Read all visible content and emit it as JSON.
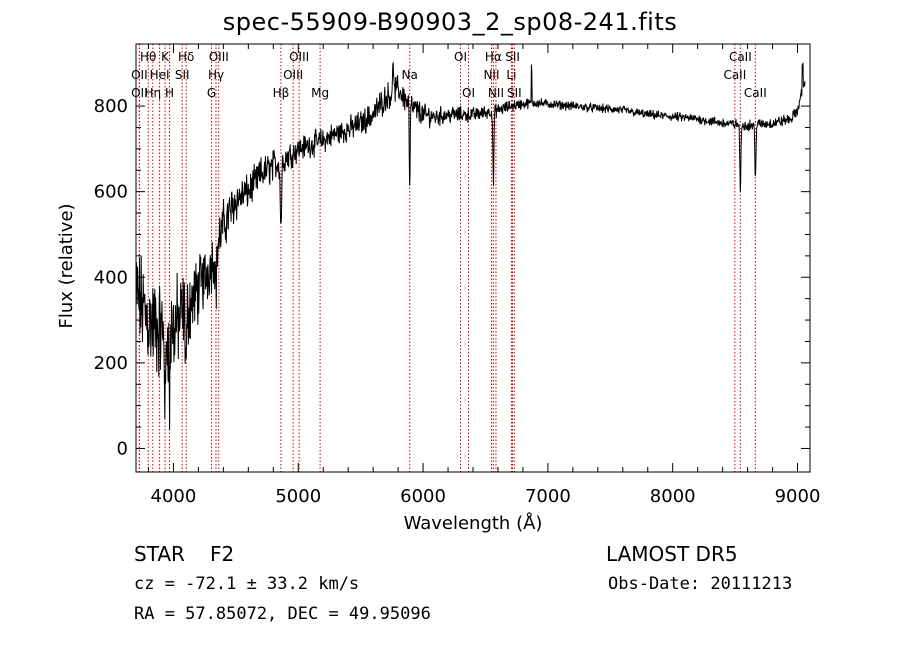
{
  "title": "spec-55909-B90903_2_sp08-241.fits",
  "info": {
    "object_type": "STAR",
    "subclass": "F2",
    "survey": "LAMOST DR5",
    "cz": "cz = -72.1 ± 33.2 km/s",
    "obs_date": "Obs-Date: 20111213",
    "coords": "RA =  57.85072, DEC =  49.95096"
  },
  "chart_data": {
    "type": "line",
    "title": "spec-55909-B90903_2_sp08-241.fits",
    "xlabel": "Wavelength (Å)",
    "ylabel": "Flux (relative)",
    "xlim": [
      3700,
      9100
    ],
    "ylim": [
      -55,
      945
    ],
    "xticks": [
      4000,
      5000,
      6000,
      7000,
      8000,
      9000
    ],
    "yticks": [
      0,
      200,
      400,
      600,
      800
    ],
    "grid": false,
    "line_color": "#000000",
    "marker_line_color": "#cc0000",
    "continuum": [
      [
        3700,
        360
      ],
      [
        3800,
        300
      ],
      [
        3900,
        270
      ],
      [
        4000,
        280
      ],
      [
        4100,
        320
      ],
      [
        4200,
        370
      ],
      [
        4300,
        430
      ],
      [
        4400,
        520
      ],
      [
        4500,
        580
      ],
      [
        4600,
        600
      ],
      [
        4700,
        640
      ],
      [
        4800,
        660
      ],
      [
        4900,
        680
      ],
      [
        5000,
        700
      ],
      [
        5100,
        710
      ],
      [
        5200,
        720
      ],
      [
        5300,
        735
      ],
      [
        5400,
        745
      ],
      [
        5500,
        760
      ],
      [
        5600,
        780
      ],
      [
        5700,
        820
      ],
      [
        5800,
        840
      ],
      [
        5900,
        800
      ],
      [
        6000,
        780
      ],
      [
        6100,
        775
      ],
      [
        6200,
        780
      ],
      [
        6300,
        780
      ],
      [
        6400,
        780
      ],
      [
        6500,
        785
      ],
      [
        6600,
        790
      ],
      [
        6700,
        800
      ],
      [
        6800,
        805
      ],
      [
        6900,
        808
      ],
      [
        7000,
        805
      ],
      [
        7200,
        800
      ],
      [
        7400,
        795
      ],
      [
        7600,
        790
      ],
      [
        7800,
        780
      ],
      [
        8000,
        775
      ],
      [
        8200,
        770
      ],
      [
        8400,
        760
      ],
      [
        8600,
        755
      ],
      [
        8800,
        760
      ],
      [
        8950,
        770
      ],
      [
        9000,
        790
      ],
      [
        9050,
        850
      ]
    ],
    "noise": [
      [
        3700,
        90
      ],
      [
        4000,
        90
      ],
      [
        4200,
        60
      ],
      [
        4400,
        45
      ],
      [
        4600,
        30
      ],
      [
        4800,
        30
      ],
      [
        5000,
        22
      ],
      [
        5400,
        22
      ],
      [
        5800,
        25
      ],
      [
        6200,
        15
      ],
      [
        7000,
        8
      ],
      [
        8000,
        8
      ],
      [
        8800,
        10
      ],
      [
        9050,
        10
      ]
    ],
    "absorption": [
      {
        "wave": 3934,
        "depth": 200,
        "width": 6
      },
      {
        "wave": 3969,
        "depth": 180,
        "width": 6
      },
      {
        "wave": 4102,
        "depth": 120,
        "width": 8
      },
      {
        "wave": 4341,
        "depth": 90,
        "width": 8
      },
      {
        "wave": 4861,
        "depth": 150,
        "width": 8
      },
      {
        "wave": 5893,
        "depth": 200,
        "width": 5
      },
      {
        "wave": 6563,
        "depth": 170,
        "width": 6
      },
      {
        "wave": 8542,
        "depth": 160,
        "width": 6
      },
      {
        "wave": 8662,
        "depth": 130,
        "width": 6
      }
    ],
    "spikes": [
      {
        "wave": 5760,
        "height": 70
      },
      {
        "wave": 6870,
        "height": 80
      },
      {
        "wave": 9040,
        "height": 60
      }
    ],
    "lines": [
      {
        "wave": 3798,
        "label": "Hθ",
        "row": 0
      },
      {
        "wave": 3933,
        "label": "K",
        "row": 0
      },
      {
        "wave": 4102,
        "label": "Hδ",
        "row": 0
      },
      {
        "wave": 4363,
        "label": "OIII",
        "row": 0
      },
      {
        "wave": 5007,
        "label": "OIII",
        "row": 0
      },
      {
        "wave": 6300,
        "label": "OI",
        "row": 0
      },
      {
        "wave": 6563,
        "label": "Hα",
        "row": 0
      },
      {
        "wave": 6717,
        "label": "SII",
        "row": 0
      },
      {
        "wave": 8542,
        "label": "CaII",
        "row": 0
      },
      {
        "wave": 3727,
        "label": "OII",
        "row": 1
      },
      {
        "wave": 3889,
        "label": "HeI",
        "row": 1
      },
      {
        "wave": 4070,
        "label": "SII",
        "row": 1
      },
      {
        "wave": 4341,
        "label": "Hγ",
        "row": 1
      },
      {
        "wave": 4959,
        "label": "OIII",
        "row": 1
      },
      {
        "wave": 5893,
        "label": "Na",
        "row": 1
      },
      {
        "wave": 6548,
        "label": "NII",
        "row": 1
      },
      {
        "wave": 6708,
        "label": "Li",
        "row": 1
      },
      {
        "wave": 8498,
        "label": "CaII",
        "row": 1
      },
      {
        "wave": 3727,
        "label": "OII",
        "row": 2
      },
      {
        "wave": 3835,
        "label": "Hη",
        "row": 2
      },
      {
        "wave": 3969,
        "label": "H",
        "row": 2
      },
      {
        "wave": 4305,
        "label": "G",
        "row": 2
      },
      {
        "wave": 4861,
        "label": "Hβ",
        "row": 2
      },
      {
        "wave": 5175,
        "label": "Mg",
        "row": 2
      },
      {
        "wave": 6364,
        "label": "OI",
        "row": 2
      },
      {
        "wave": 6584,
        "label": "NII",
        "row": 2
      },
      {
        "wave": 6731,
        "label": "SII",
        "row": 2
      },
      {
        "wave": 8662,
        "label": "CaII",
        "row": 2
      }
    ]
  }
}
